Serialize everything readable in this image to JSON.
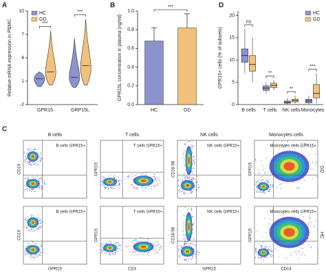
{
  "panel_labels": [
    "A",
    "B",
    "C",
    "D"
  ],
  "chart_data": [
    {
      "type": "violin",
      "y_label": "Relative mRNA expression in PBMC",
      "categories": [
        "GPR15",
        "GRP15L"
      ],
      "ylim": [
        -2,
        10
      ],
      "yticks": [
        -2,
        1,
        4,
        7,
        10
      ],
      "legend": "upper left",
      "series": [
        {
          "name": "HC",
          "color": "#8c93cc",
          "values": [
            1.3,
            1.5
          ],
          "min": [
            0.3,
            0.2
          ],
          "max": [
            2.2,
            6.5
          ]
        },
        {
          "name": "GD",
          "color": "#f1c27b",
          "values": [
            2.2,
            3.0
          ],
          "min": [
            0.5,
            0.5
          ],
          "max": [
            7.5,
            9.0
          ]
        }
      ],
      "annotations": [
        "***",
        "***"
      ]
    },
    {
      "type": "bar",
      "y_label": "GPR15L concentration in plasma (ng/ml)",
      "categories": [
        "HC",
        "GD"
      ],
      "values": [
        0.68,
        0.82
      ],
      "errors": [
        0.14,
        0.15
      ],
      "colors": [
        "#8c93cc",
        "#f1c27b"
      ],
      "ylim": [
        0,
        1.0
      ],
      "yticks": [
        {
          "value": 0,
          "label": "0.0"
        },
        0.2,
        0.4,
        0.6,
        0.8,
        {
          "value": 1,
          "label": "1.0"
        }
      ],
      "annotation": "***"
    },
    {
      "type": "box",
      "y_label": "GPR15+ cells (% of subsets)",
      "categories": [
        "B cells",
        "T cells",
        "NK cells",
        "Monocytes"
      ],
      "ylim": [
        0,
        21
      ],
      "yticks": [
        0,
        5,
        10,
        15,
        20
      ],
      "legend": "upper right",
      "series": [
        {
          "name": "HC",
          "color": "#8c93cc",
          "min": [
            7,
            2.5,
            0,
            0
          ],
          "q1": [
            9.5,
            3.2,
            0.3,
            0.4
          ],
          "values": [
            11,
            3.7,
            0.5,
            0.8
          ],
          "q3": [
            12.5,
            4.2,
            0.8,
            1.2
          ],
          "max": [
            17,
            5,
            1.5,
            2
          ]
        },
        {
          "name": "GD",
          "color": "#f1c27b",
          "min": [
            5,
            3.2,
            0.2,
            0.3
          ],
          "q1": [
            7.5,
            3.8,
            0.6,
            1.5
          ],
          "values": [
            9,
            4.3,
            0.9,
            2.5
          ],
          "q3": [
            11,
            4.8,
            1.2,
            4.5
          ],
          "max": [
            15,
            5.5,
            2,
            7
          ]
        }
      ],
      "annotations": [
        "ns",
        "**",
        "**",
        "***"
      ]
    }
  ],
  "flow": {
    "columns": [
      {
        "title": "B cells",
        "gate": "B cells GPR15+",
        "x_label": "GPR15",
        "y_label": "CD19"
      },
      {
        "title": "T cells",
        "gate": "T cells GPR15+",
        "x_label": "CD3",
        "y_label": "GPR15"
      },
      {
        "title": "NK cells",
        "gate": "NK cells GPR15+",
        "x_label": "GPR15",
        "y_label": "CD16-56"
      },
      {
        "title": "Monocytes cells",
        "gate": "Monocytes cells GPR15+",
        "x_label": "CD14",
        "y_label": "GPR15"
      }
    ],
    "rows": [
      "GD",
      "HC"
    ]
  }
}
